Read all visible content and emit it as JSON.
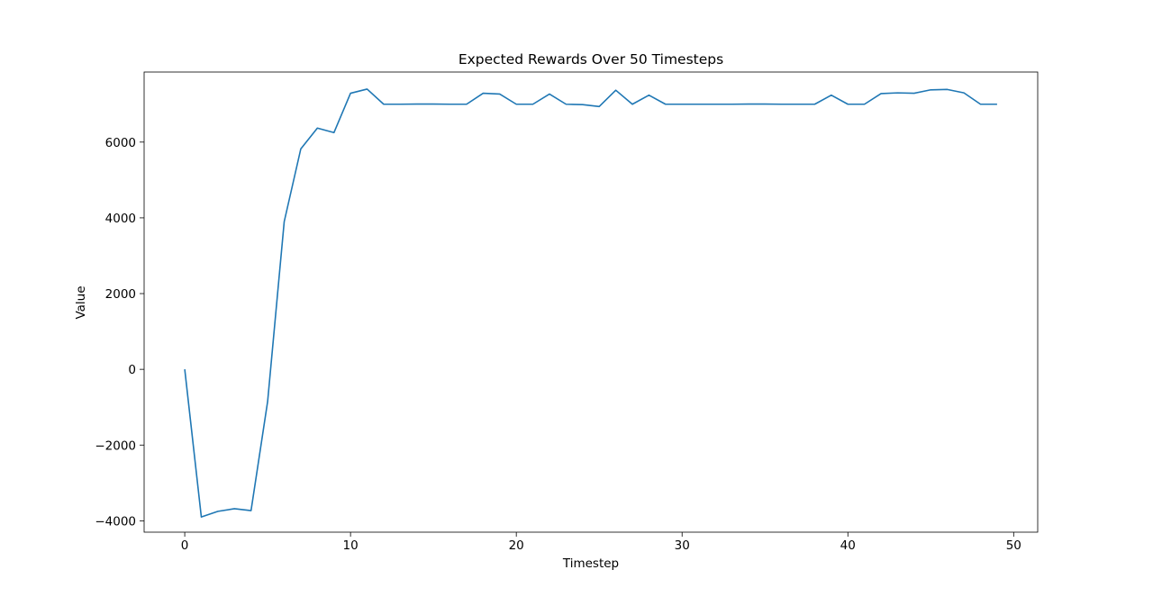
{
  "chart_data": {
    "type": "line",
    "title": "Expected Rewards Over 50 Timesteps",
    "xlabel": "Timestep",
    "ylabel": "Value",
    "xlim": [
      -2.45,
      51.45
    ],
    "ylim": [
      -4300,
      7850
    ],
    "xticks": [
      0,
      10,
      20,
      30,
      40,
      50
    ],
    "yticks": [
      -4000,
      -2000,
      0,
      2000,
      4000,
      6000
    ],
    "xtick_labels": [
      "0",
      "10",
      "20",
      "30",
      "40",
      "50"
    ],
    "ytick_labels": [
      "−4000",
      "−2000",
      "0",
      "2000",
      "4000",
      "6000"
    ],
    "grid": false,
    "series": [
      {
        "color": "#1f77b4",
        "x": [
          0,
          1,
          2,
          3,
          4,
          5,
          6,
          7,
          8,
          9,
          10,
          11,
          12,
          13,
          14,
          15,
          16,
          17,
          18,
          19,
          20,
          21,
          22,
          23,
          24,
          25,
          26,
          27,
          28,
          29,
          30,
          31,
          32,
          33,
          34,
          35,
          36,
          37,
          38,
          39,
          40,
          41,
          42,
          43,
          44,
          45,
          46,
          47,
          48,
          49
        ],
        "values": [
          0,
          -3900,
          -3750,
          -3680,
          -3730,
          -850,
          3900,
          5820,
          6370,
          6250,
          7290,
          7400,
          7000,
          7000,
          7005,
          7005,
          7000,
          7000,
          7290,
          7270,
          7000,
          7000,
          7270,
          7000,
          6990,
          6940,
          7370,
          7000,
          7240,
          7000,
          7000,
          7000,
          7000,
          7000,
          7005,
          7005,
          7000,
          7000,
          7000,
          7240,
          7000,
          7000,
          7280,
          7300,
          7290,
          7380,
          7390,
          7300,
          7000,
          7000
        ]
      }
    ]
  }
}
